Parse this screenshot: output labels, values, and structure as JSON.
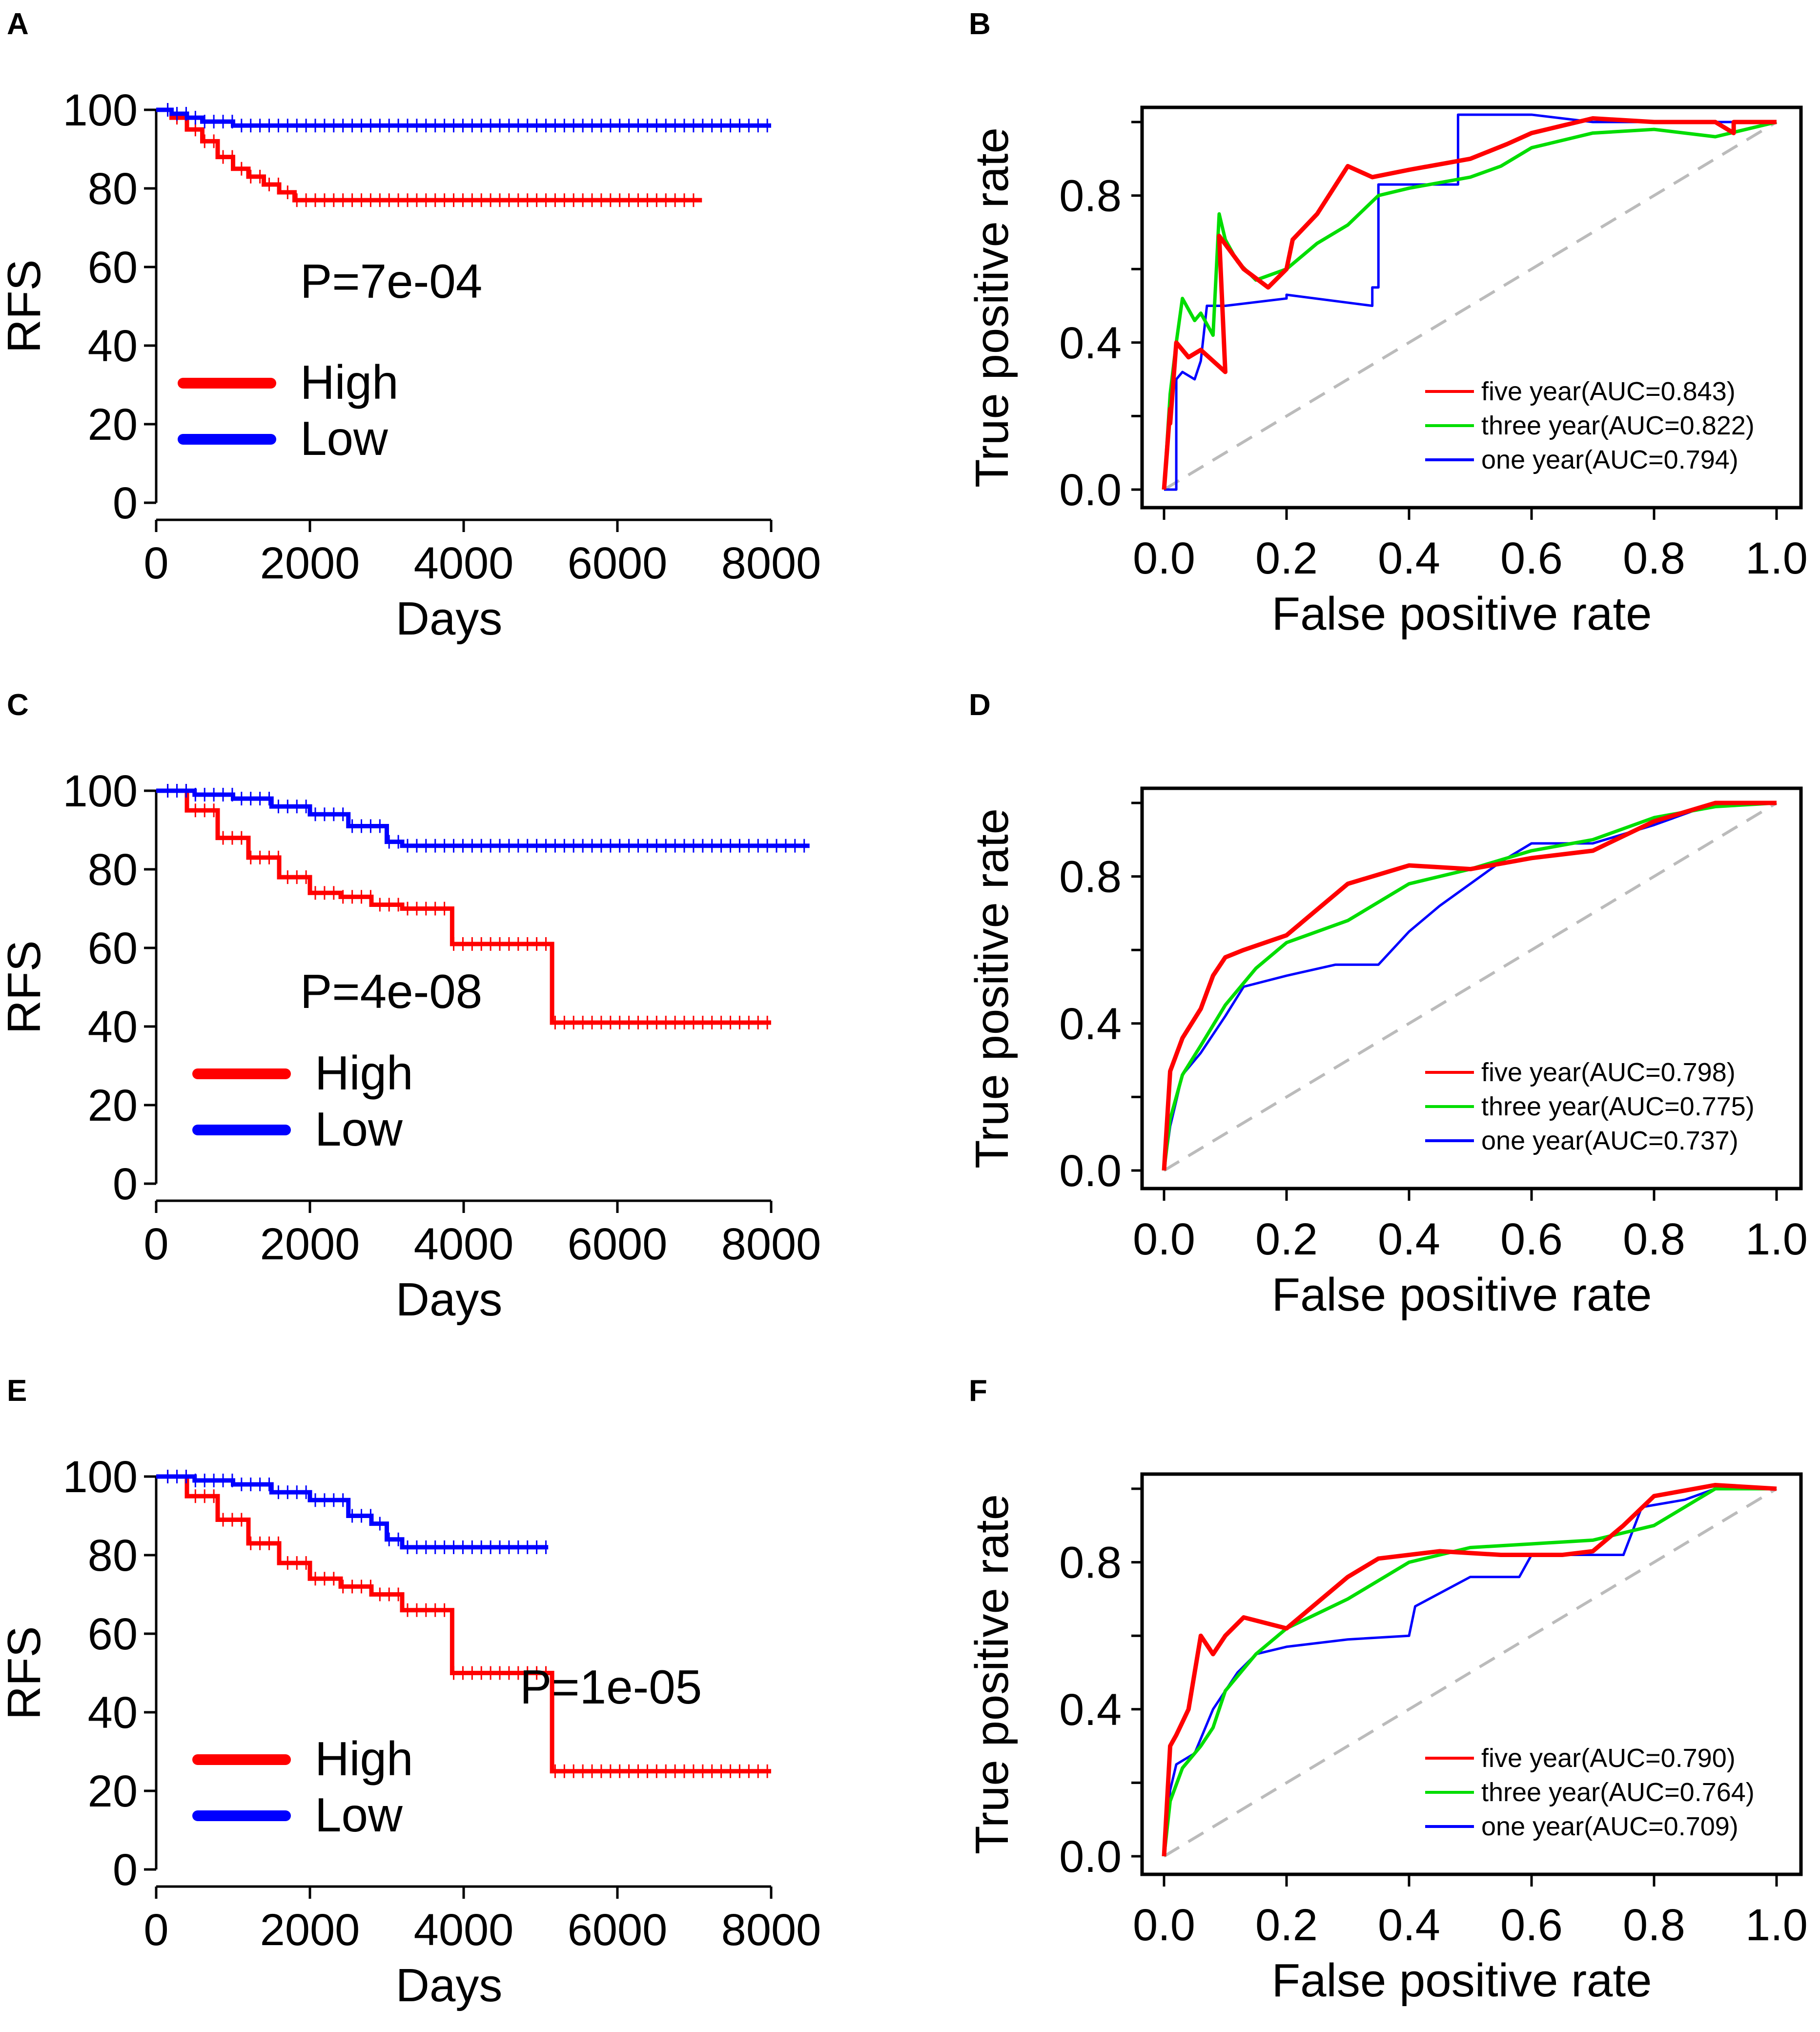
{
  "figure": {
    "panels": [
      "A",
      "B",
      "C",
      "D",
      "E",
      "F"
    ]
  },
  "chart_data": [
    {
      "panel": "A",
      "type": "line",
      "subtype": "kaplan-meier",
      "xlabel": "Days",
      "ylabel": "RFS",
      "xlim": [
        0,
        8000
      ],
      "ylim": [
        0,
        100
      ],
      "xticks": [
        "0",
        "2000",
        "4000",
        "6000",
        "8000"
      ],
      "yticks": [
        "0",
        "20",
        "40",
        "60",
        "80",
        "100"
      ],
      "pvalue": "P=7e-04",
      "legend": [
        "High",
        "Low"
      ],
      "colors": {
        "High": "#ff0000",
        "Low": "#0000ff"
      },
      "series": [
        {
          "name": "High",
          "x": [
            0,
            200,
            400,
            600,
            800,
            1000,
            1200,
            1400,
            1600,
            1800,
            2000,
            3000,
            5000,
            7100
          ],
          "y": [
            100,
            98,
            95,
            92,
            88,
            85,
            83,
            81,
            79,
            77,
            77,
            77,
            77,
            77
          ]
        },
        {
          "name": "Low",
          "x": [
            0,
            200,
            400,
            600,
            1000,
            2000,
            4000,
            6000,
            8000
          ],
          "y": [
            100,
            99,
            98,
            97,
            96,
            96,
            96,
            96,
            96
          ]
        }
      ]
    },
    {
      "panel": "B",
      "type": "line",
      "subtype": "roc",
      "xlabel": "False positive rate",
      "ylabel": "True positive rate",
      "xlim": [
        0,
        1
      ],
      "ylim": [
        0,
        1
      ],
      "xticks": [
        "0.0",
        "0.2",
        "0.4",
        "0.6",
        "0.8",
        "1.0"
      ],
      "yticks": [
        "0.0",
        "0.4",
        "0.8"
      ],
      "legend": [
        "five year(AUC=0.843)",
        "three year(AUC=0.822)",
        "one year(AUC=0.794)"
      ],
      "series": [
        {
          "name": "five year(AUC=0.843)",
          "color": "#ff0000",
          "x": [
            0,
            0.01,
            0.01,
            0.02,
            0.04,
            0.06,
            0.08,
            0.1,
            0.09,
            0.13,
            0.17,
            0.2,
            0.21,
            0.25,
            0.3,
            0.34,
            0.4,
            0.5,
            0.56,
            0.6,
            0.7,
            0.8,
            0.9,
            0.93,
            0.93,
            1
          ],
          "y": [
            0,
            0.22,
            0.18,
            0.4,
            0.36,
            0.38,
            0.35,
            0.32,
            0.69,
            0.6,
            0.55,
            0.6,
            0.68,
            0.75,
            0.88,
            0.85,
            0.87,
            0.9,
            0.94,
            0.97,
            1.01,
            1.0,
            1.0,
            0.97,
            1.0,
            1.0
          ]
        },
        {
          "name": "three year(AUC=0.822)",
          "color": "#00dd00",
          "x": [
            0,
            0.01,
            0.02,
            0.03,
            0.05,
            0.06,
            0.07,
            0.08,
            0.09,
            0.1,
            0.12,
            0.15,
            0.2,
            0.25,
            0.3,
            0.35,
            0.4,
            0.5,
            0.55,
            0.6,
            0.7,
            0.8,
            0.9,
            1
          ],
          "y": [
            0,
            0.26,
            0.4,
            0.52,
            0.46,
            0.48,
            0.45,
            0.42,
            0.75,
            0.68,
            0.62,
            0.57,
            0.6,
            0.67,
            0.72,
            0.8,
            0.82,
            0.85,
            0.88,
            0.93,
            0.97,
            0.98,
            0.96,
            1.0
          ]
        },
        {
          "name": "one year(AUC=0.794)",
          "color": "#0000ff",
          "x": [
            0,
            0.02,
            0.02,
            0.03,
            0.05,
            0.06,
            0.07,
            0.1,
            0.2,
            0.2,
            0.34,
            0.34,
            0.35,
            0.35,
            0.48,
            0.48,
            0.6,
            0.7,
            0.8,
            0.9,
            1.0
          ],
          "y": [
            0,
            0,
            0.3,
            0.32,
            0.3,
            0.35,
            0.5,
            0.5,
            0.52,
            0.53,
            0.5,
            0.55,
            0.55,
            0.83,
            0.83,
            1.02,
            1.02,
            1.0,
            1.0,
            1.0,
            1.0
          ]
        }
      ]
    },
    {
      "panel": "C",
      "type": "line",
      "subtype": "kaplan-meier",
      "xlabel": "Days",
      "ylabel": "RFS",
      "xlim": [
        0,
        8000
      ],
      "ylim": [
        0,
        100
      ],
      "xticks": [
        "0",
        "2000",
        "4000",
        "6000",
        "8000"
      ],
      "yticks": [
        "0",
        "20",
        "40",
        "60",
        "80",
        "100"
      ],
      "pvalue": "P=4e-08",
      "legend": [
        "High",
        "Low"
      ],
      "colors": {
        "High": "#ff0000",
        "Low": "#0000ff"
      },
      "series": [
        {
          "name": "High",
          "x": [
            0,
            400,
            800,
            1200,
            1600,
            2000,
            2400,
            2800,
            3200,
            3850,
            3850,
            5150,
            5150,
            8000
          ],
          "y": [
            100,
            95,
            88,
            83,
            78,
            74,
            73,
            71,
            70,
            70,
            61,
            61,
            41,
            41
          ]
        },
        {
          "name": "Low",
          "x": [
            0,
            500,
            1000,
            1500,
            2000,
            2500,
            3000,
            3200,
            4000,
            6000,
            8500
          ],
          "y": [
            100,
            99,
            98,
            96,
            94,
            91,
            87,
            86,
            86,
            86,
            86
          ]
        }
      ]
    },
    {
      "panel": "D",
      "type": "line",
      "subtype": "roc",
      "xlabel": "False positive rate",
      "ylabel": "True positive rate",
      "xlim": [
        0,
        1
      ],
      "ylim": [
        0,
        1
      ],
      "xticks": [
        "0.0",
        "0.2",
        "0.4",
        "0.6",
        "0.8",
        "1.0"
      ],
      "yticks": [
        "0.0",
        "0.4",
        "0.8"
      ],
      "legend": [
        "five year(AUC=0.798)",
        "three year(AUC=0.775)",
        "one year(AUC=0.737)"
      ],
      "series": [
        {
          "name": "five year(AUC=0.798)",
          "color": "#ff0000",
          "x": [
            0,
            0.01,
            0.03,
            0.06,
            0.08,
            0.1,
            0.13,
            0.2,
            0.3,
            0.4,
            0.5,
            0.6,
            0.7,
            0.8,
            0.9,
            1.0
          ],
          "y": [
            0,
            0.27,
            0.36,
            0.44,
            0.53,
            0.58,
            0.6,
            0.64,
            0.78,
            0.83,
            0.82,
            0.85,
            0.87,
            0.95,
            1.0,
            1.0
          ]
        },
        {
          "name": "three year(AUC=0.775)",
          "color": "#00dd00",
          "x": [
            0,
            0.01,
            0.03,
            0.06,
            0.1,
            0.15,
            0.2,
            0.3,
            0.4,
            0.5,
            0.6,
            0.7,
            0.8,
            0.9,
            1.0
          ],
          "y": [
            0,
            0.14,
            0.26,
            0.34,
            0.45,
            0.55,
            0.62,
            0.68,
            0.78,
            0.82,
            0.87,
            0.9,
            0.96,
            0.99,
            1.0
          ]
        },
        {
          "name": "one year(AUC=0.737)",
          "color": "#0000ff",
          "x": [
            0,
            0.01,
            0.03,
            0.06,
            0.1,
            0.13,
            0.2,
            0.28,
            0.35,
            0.4,
            0.45,
            0.5,
            0.55,
            0.6,
            0.7,
            0.8,
            0.9,
            1.0
          ],
          "y": [
            0,
            0.12,
            0.26,
            0.32,
            0.42,
            0.5,
            0.53,
            0.56,
            0.56,
            0.65,
            0.72,
            0.78,
            0.84,
            0.89,
            0.89,
            0.94,
            1.0,
            1.0
          ]
        }
      ]
    },
    {
      "panel": "E",
      "type": "line",
      "subtype": "kaplan-meier",
      "xlabel": "Days",
      "ylabel": "RFS",
      "xlim": [
        0,
        8000
      ],
      "ylim": [
        0,
        100
      ],
      "xticks": [
        "0",
        "2000",
        "4000",
        "6000",
        "8000"
      ],
      "yticks": [
        "0",
        "20",
        "40",
        "60",
        "80",
        "100"
      ],
      "pvalue": "P=1e-05",
      "legend": [
        "High",
        "Low"
      ],
      "colors": {
        "High": "#ff0000",
        "Low": "#0000ff"
      },
      "series": [
        {
          "name": "High",
          "x": [
            0,
            400,
            800,
            1200,
            1600,
            2000,
            2400,
            2800,
            3200,
            3850,
            3850,
            5150,
            5150,
            8000
          ],
          "y": [
            100,
            95,
            89,
            83,
            78,
            74,
            72,
            70,
            66,
            66,
            50,
            50,
            25,
            25
          ]
        },
        {
          "name": "Low",
          "x": [
            0,
            500,
            1000,
            1500,
            2000,
            2500,
            2800,
            3000,
            3200,
            4000,
            5100
          ],
          "y": [
            100,
            99,
            98,
            96,
            94,
            90,
            88,
            84,
            82,
            82,
            82
          ]
        }
      ]
    },
    {
      "panel": "F",
      "type": "line",
      "subtype": "roc",
      "xlabel": "False positive rate",
      "ylabel": "True positive rate",
      "xlim": [
        0,
        1
      ],
      "ylim": [
        0,
        1
      ],
      "xticks": [
        "0.0",
        "0.2",
        "0.4",
        "0.6",
        "0.8",
        "1.0"
      ],
      "yticks": [
        "0.0",
        "0.4",
        "0.8"
      ],
      "legend": [
        "five year(AUC=0.790)",
        "three year(AUC=0.764)",
        "one year(AUC=0.709)"
      ],
      "series": [
        {
          "name": "five year(AUC=0.790)",
          "color": "#ff0000",
          "x": [
            0,
            0.01,
            0.02,
            0.04,
            0.05,
            0.06,
            0.08,
            0.1,
            0.13,
            0.2,
            0.3,
            0.35,
            0.45,
            0.55,
            0.65,
            0.7,
            0.75,
            0.8,
            0.9,
            1.0
          ],
          "y": [
            0,
            0.3,
            0.33,
            0.4,
            0.5,
            0.6,
            0.55,
            0.6,
            0.65,
            0.62,
            0.76,
            0.81,
            0.83,
            0.82,
            0.82,
            0.83,
            0.9,
            0.98,
            1.01,
            1.0
          ]
        },
        {
          "name": "three year(AUC=0.764)",
          "color": "#00dd00",
          "x": [
            0,
            0.01,
            0.03,
            0.06,
            0.08,
            0.1,
            0.15,
            0.2,
            0.3,
            0.4,
            0.5,
            0.6,
            0.7,
            0.8,
            0.9,
            1.0
          ],
          "y": [
            0,
            0.15,
            0.24,
            0.3,
            0.35,
            0.45,
            0.55,
            0.62,
            0.7,
            0.8,
            0.84,
            0.85,
            0.86,
            0.9,
            1.0,
            1.0
          ]
        },
        {
          "name": "one year(AUC=0.709)",
          "color": "#0000ff",
          "x": [
            0,
            0.01,
            0.02,
            0.05,
            0.08,
            0.12,
            0.15,
            0.2,
            0.25,
            0.3,
            0.4,
            0.41,
            0.5,
            0.58,
            0.6,
            0.75,
            0.78,
            0.85,
            0.9,
            1.0
          ],
          "y": [
            0,
            0.18,
            0.25,
            0.28,
            0.4,
            0.5,
            0.55,
            0.57,
            0.58,
            0.59,
            0.6,
            0.68,
            0.76,
            0.76,
            0.82,
            0.82,
            0.95,
            0.97,
            1.0,
            1.0
          ]
        }
      ]
    }
  ]
}
